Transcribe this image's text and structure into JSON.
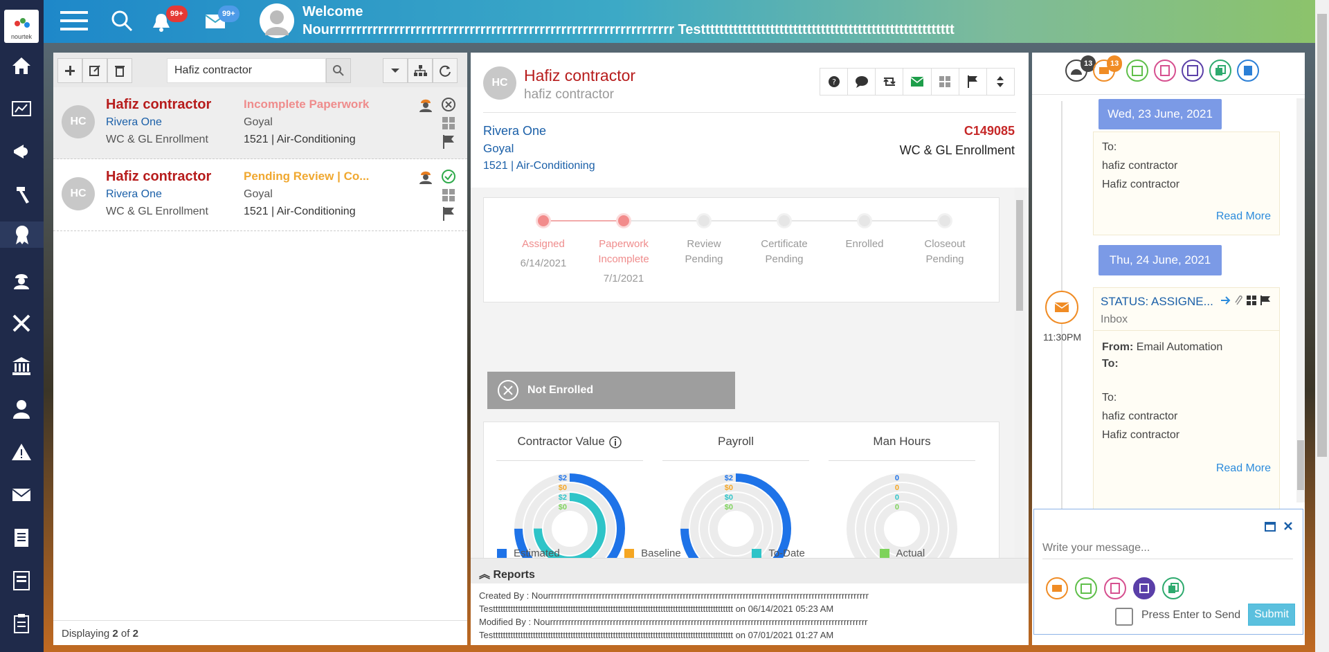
{
  "app": {
    "logo_text": "nourtek"
  },
  "header": {
    "notification_badge": "99+",
    "message_badge": "99+",
    "welcome": "Welcome",
    "user_name": "Nourrrrrrrrrrrrrrrrrrrrrrrrrrrrrrrrrrrrrrrrrrrrrrrrrrrrrrrrrrrrrrrr Testtttttttttttttttttttttttttttttttttttttttttttttttttttttt"
  },
  "list": {
    "search_value": "Hafiz contractor",
    "footer_prefix": "Displaying ",
    "footer_count": "2",
    "footer_mid": " of ",
    "footer_total": "2",
    "rows": [
      {
        "initials": "HC",
        "name": "Hafiz contractor",
        "company": "Rivera One",
        "type": "WC & GL Enrollment",
        "status": "Incomplete Paperwork",
        "agent": "Goyal",
        "code": "1521 | Air-Conditioning"
      },
      {
        "initials": "HC",
        "name": "Hafiz contractor",
        "company": "Rivera One",
        "type": "WC & GL Enrollment",
        "status": "Pending Review | Co...",
        "agent": "Goyal",
        "code": "1521 | Air-Conditioning"
      }
    ]
  },
  "detail": {
    "initials": "HC",
    "name": "Hafiz contractor",
    "subname": "hafiz contractor",
    "company": "Rivera One",
    "agent": "Goyal",
    "code": "1521 | Air-Conditioning",
    "id": "C149085",
    "type": "WC & GL Enrollment",
    "steps": [
      {
        "label1": "Assigned",
        "label2": "",
        "date": "6/14/2021",
        "done": true
      },
      {
        "label1": "Paperwork",
        "label2": "Incomplete",
        "date": "7/1/2021",
        "done": true
      },
      {
        "label1": "Review",
        "label2": "Pending",
        "date": "",
        "done": false
      },
      {
        "label1": "Certificate",
        "label2": "Pending",
        "date": "",
        "done": false
      },
      {
        "label1": "Enrolled",
        "label2": "",
        "date": "",
        "done": false
      },
      {
        "label1": "Closeout",
        "label2": "Pending",
        "date": "",
        "done": false
      }
    ],
    "not_enrolled": "Not Enrolled",
    "charts": [
      {
        "title": "Contractor Value",
        "labels": [
          "$2",
          "$0",
          "$2",
          "$0"
        ],
        "values": [
          1.0,
          0,
          1.0,
          0
        ]
      },
      {
        "title": "Payroll",
        "labels": [
          "$2",
          "$0",
          "$0",
          "$0"
        ],
        "values": [
          1.0,
          0,
          0,
          0
        ]
      },
      {
        "title": "Man Hours",
        "labels": [
          "0",
          "0",
          "0",
          "0"
        ],
        "values": [
          0,
          0,
          0,
          0
        ]
      }
    ],
    "legend": [
      {
        "name": "Estimated",
        "color": "#1e73e8"
      },
      {
        "name": "Baseline",
        "color": "#f5a623"
      },
      {
        "name": "To-Date",
        "color": "#2ec4c8"
      },
      {
        "name": "Actual",
        "color": "#7ed35b"
      }
    ],
    "reports_title": "Reports",
    "created_line1": "Created By : Nourrrrrrrrrrrrrrrrrrrrrrrrrrrrrrrrrrrrrrrrrrrrrrrrrrrrrrrrrrrrrrrrrrrrrrrrrrrrrrrrrrrrrrrrrrrrrrrrrrrrrrrrrrr",
    "created_line2": "Testttttttttttttttttttttttttttttttttttttttttttttttttttttttttttttttttttttttttttttttttttttttttttttttt on 06/14/2021 05:23 AM",
    "modified_line1": "Modified By : Nourrrrrrrrrrrrrrrrrrrrrrrrrrrrrrrrrrrrrrrrrrrrrrrrrrrrrrrrrrrrrrrrrrrrrrrrrrrrrrrrrrrrrrrrrrrrrrrrrrrrrrrrrr",
    "modified_line2": "Testttttttttttttttttttttttttttttttttttttttttttttttttttttttttttttttttttttttttttttttttttttttttttttttt on 07/01/2021 01:27 AM"
  },
  "timeline": {
    "badge_dashboard": "13",
    "badge_email": "13",
    "date1": "Wed, 23 June, 2021",
    "card1_to": "To:",
    "card1_line1": "hafiz contractor",
    "card1_line2": "Hafiz contractor",
    "read_more": "Read More",
    "date2": "Thu, 24 June, 2021",
    "item_status": "STATUS: ASSIGNE...",
    "item_folder": "Inbox",
    "item_time": "11:30PM",
    "from_label": "From:",
    "from_value": " Email Automation",
    "to_label": "To:",
    "card2_to": "To:",
    "card2_line1": "hafiz contractor",
    "card2_line2": "Hafiz contractor"
  },
  "composer": {
    "placeholder": "Write your message...",
    "enter_label": "Press Enter to Send",
    "submit": "Submit"
  },
  "colors": {
    "nav_bg": "#1f2a4a",
    "name_red": "#b71c1c",
    "link_blue": "#1a5fa8"
  }
}
